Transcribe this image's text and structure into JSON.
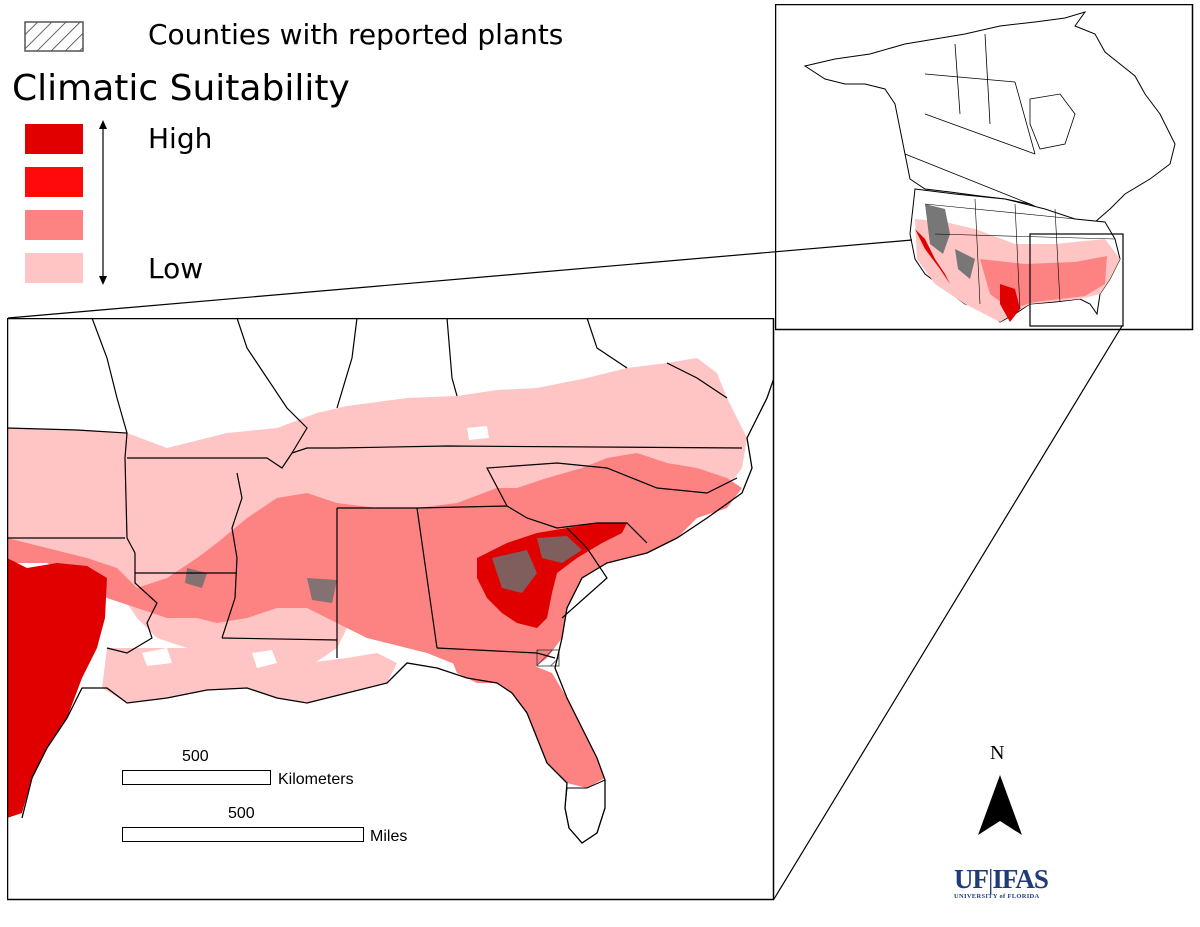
{
  "legend": {
    "hatch_label": "Counties with reported plants",
    "title": "Climatic Suitability",
    "high_label": "High",
    "low_label": "Low",
    "classes": [
      {
        "level": 4,
        "color": "#e00000"
      },
      {
        "level": 3,
        "color": "#ff0a0a"
      },
      {
        "level": 2,
        "color": "#fd8282"
      },
      {
        "level": 1,
        "color": "#ffc4c4"
      }
    ]
  },
  "scale_bars": {
    "km_value": "500",
    "km_unit": "Kilometers",
    "mi_value": "500",
    "mi_unit": "Miles"
  },
  "north_arrow": {
    "label": "N"
  },
  "logo": {
    "uf": "UF",
    "divider": "|",
    "ifas": "IFAS",
    "sub": "UNIVERSITY of FLORIDA"
  },
  "colors": {
    "high": "#e00000",
    "mid_high": "#ff0a0a",
    "mid_low": "#fd8282",
    "low": "#ffc4c4",
    "reported": "#6a6a6a",
    "logo_blue": "#1f3b7a"
  }
}
